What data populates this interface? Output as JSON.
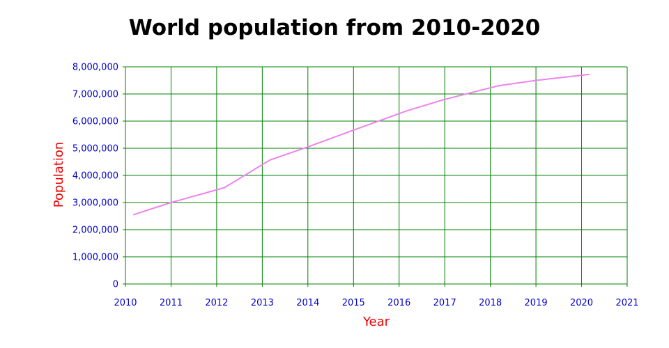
{
  "chart_data": {
    "type": "line",
    "title": "World population from 2010-2020",
    "xlabel": "Year",
    "ylabel": "Population",
    "xlim": [
      2010,
      2021
    ],
    "ylim": [
      0,
      8000000
    ],
    "x_ticks": [
      2010,
      2011,
      2012,
      2013,
      2014,
      2015,
      2016,
      2017,
      2018,
      2019,
      2020,
      2021
    ],
    "y_ticks": [
      0,
      1000000,
      2000000,
      3000000,
      4000000,
      5000000,
      6000000,
      7000000,
      8000000
    ],
    "grid": true,
    "series": [
      {
        "x": [
          2010.17,
          2011,
          2012.17,
          2013.17,
          2014,
          2015,
          2016.17,
          2017,
          2018.17,
          2019,
          2020.17
        ],
        "y": [
          2550000,
          3000000,
          3550000,
          4570000,
          5050000,
          5670000,
          6380000,
          6800000,
          7300000,
          7500000,
          7720000
        ]
      }
    ],
    "colors": {
      "line": "#ee82ee",
      "grid": "#008000",
      "tick_labels": "#0000cd",
      "axis_titles": "#ee0000"
    }
  }
}
